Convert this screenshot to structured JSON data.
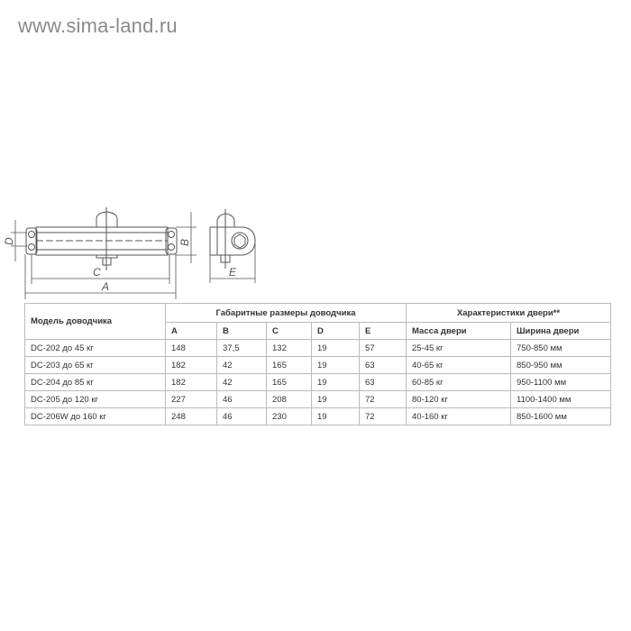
{
  "watermark": "www.sima-land.ru",
  "drawing": {
    "labels": {
      "A": "A",
      "B": "B",
      "C": "C",
      "D": "D",
      "E": "E"
    }
  },
  "table": {
    "model_header": "Модель доводчика",
    "dims_header": "Габаритные размеры доводчика",
    "door_header": "Характеристики двери**",
    "sub_headers": [
      "A",
      "B",
      "C",
      "D",
      "E",
      "Масса двери",
      "Ширина двери"
    ],
    "rows": [
      [
        "DC-202 до 45 кг",
        "148",
        "37,5",
        "132",
        "19",
        "57",
        "25-45 кг",
        "750-850 мм"
      ],
      [
        "DC-203 до 65 кг",
        "182",
        "42",
        "165",
        "19",
        "63",
        "40-65 кг",
        "850-950 мм"
      ],
      [
        "DC-204 до 85 кг",
        "182",
        "42",
        "165",
        "19",
        "63",
        "60-85 кг",
        "950-1100 мм"
      ],
      [
        "DC-205 до 120 кг",
        "227",
        "46",
        "208",
        "19",
        "72",
        "80-120 кг",
        "1100-1400 мм"
      ],
      [
        "DC-206W до 160 кг",
        "248",
        "46",
        "230",
        "19",
        "72",
        "40-160 кг",
        "850-1600 мм"
      ]
    ]
  }
}
